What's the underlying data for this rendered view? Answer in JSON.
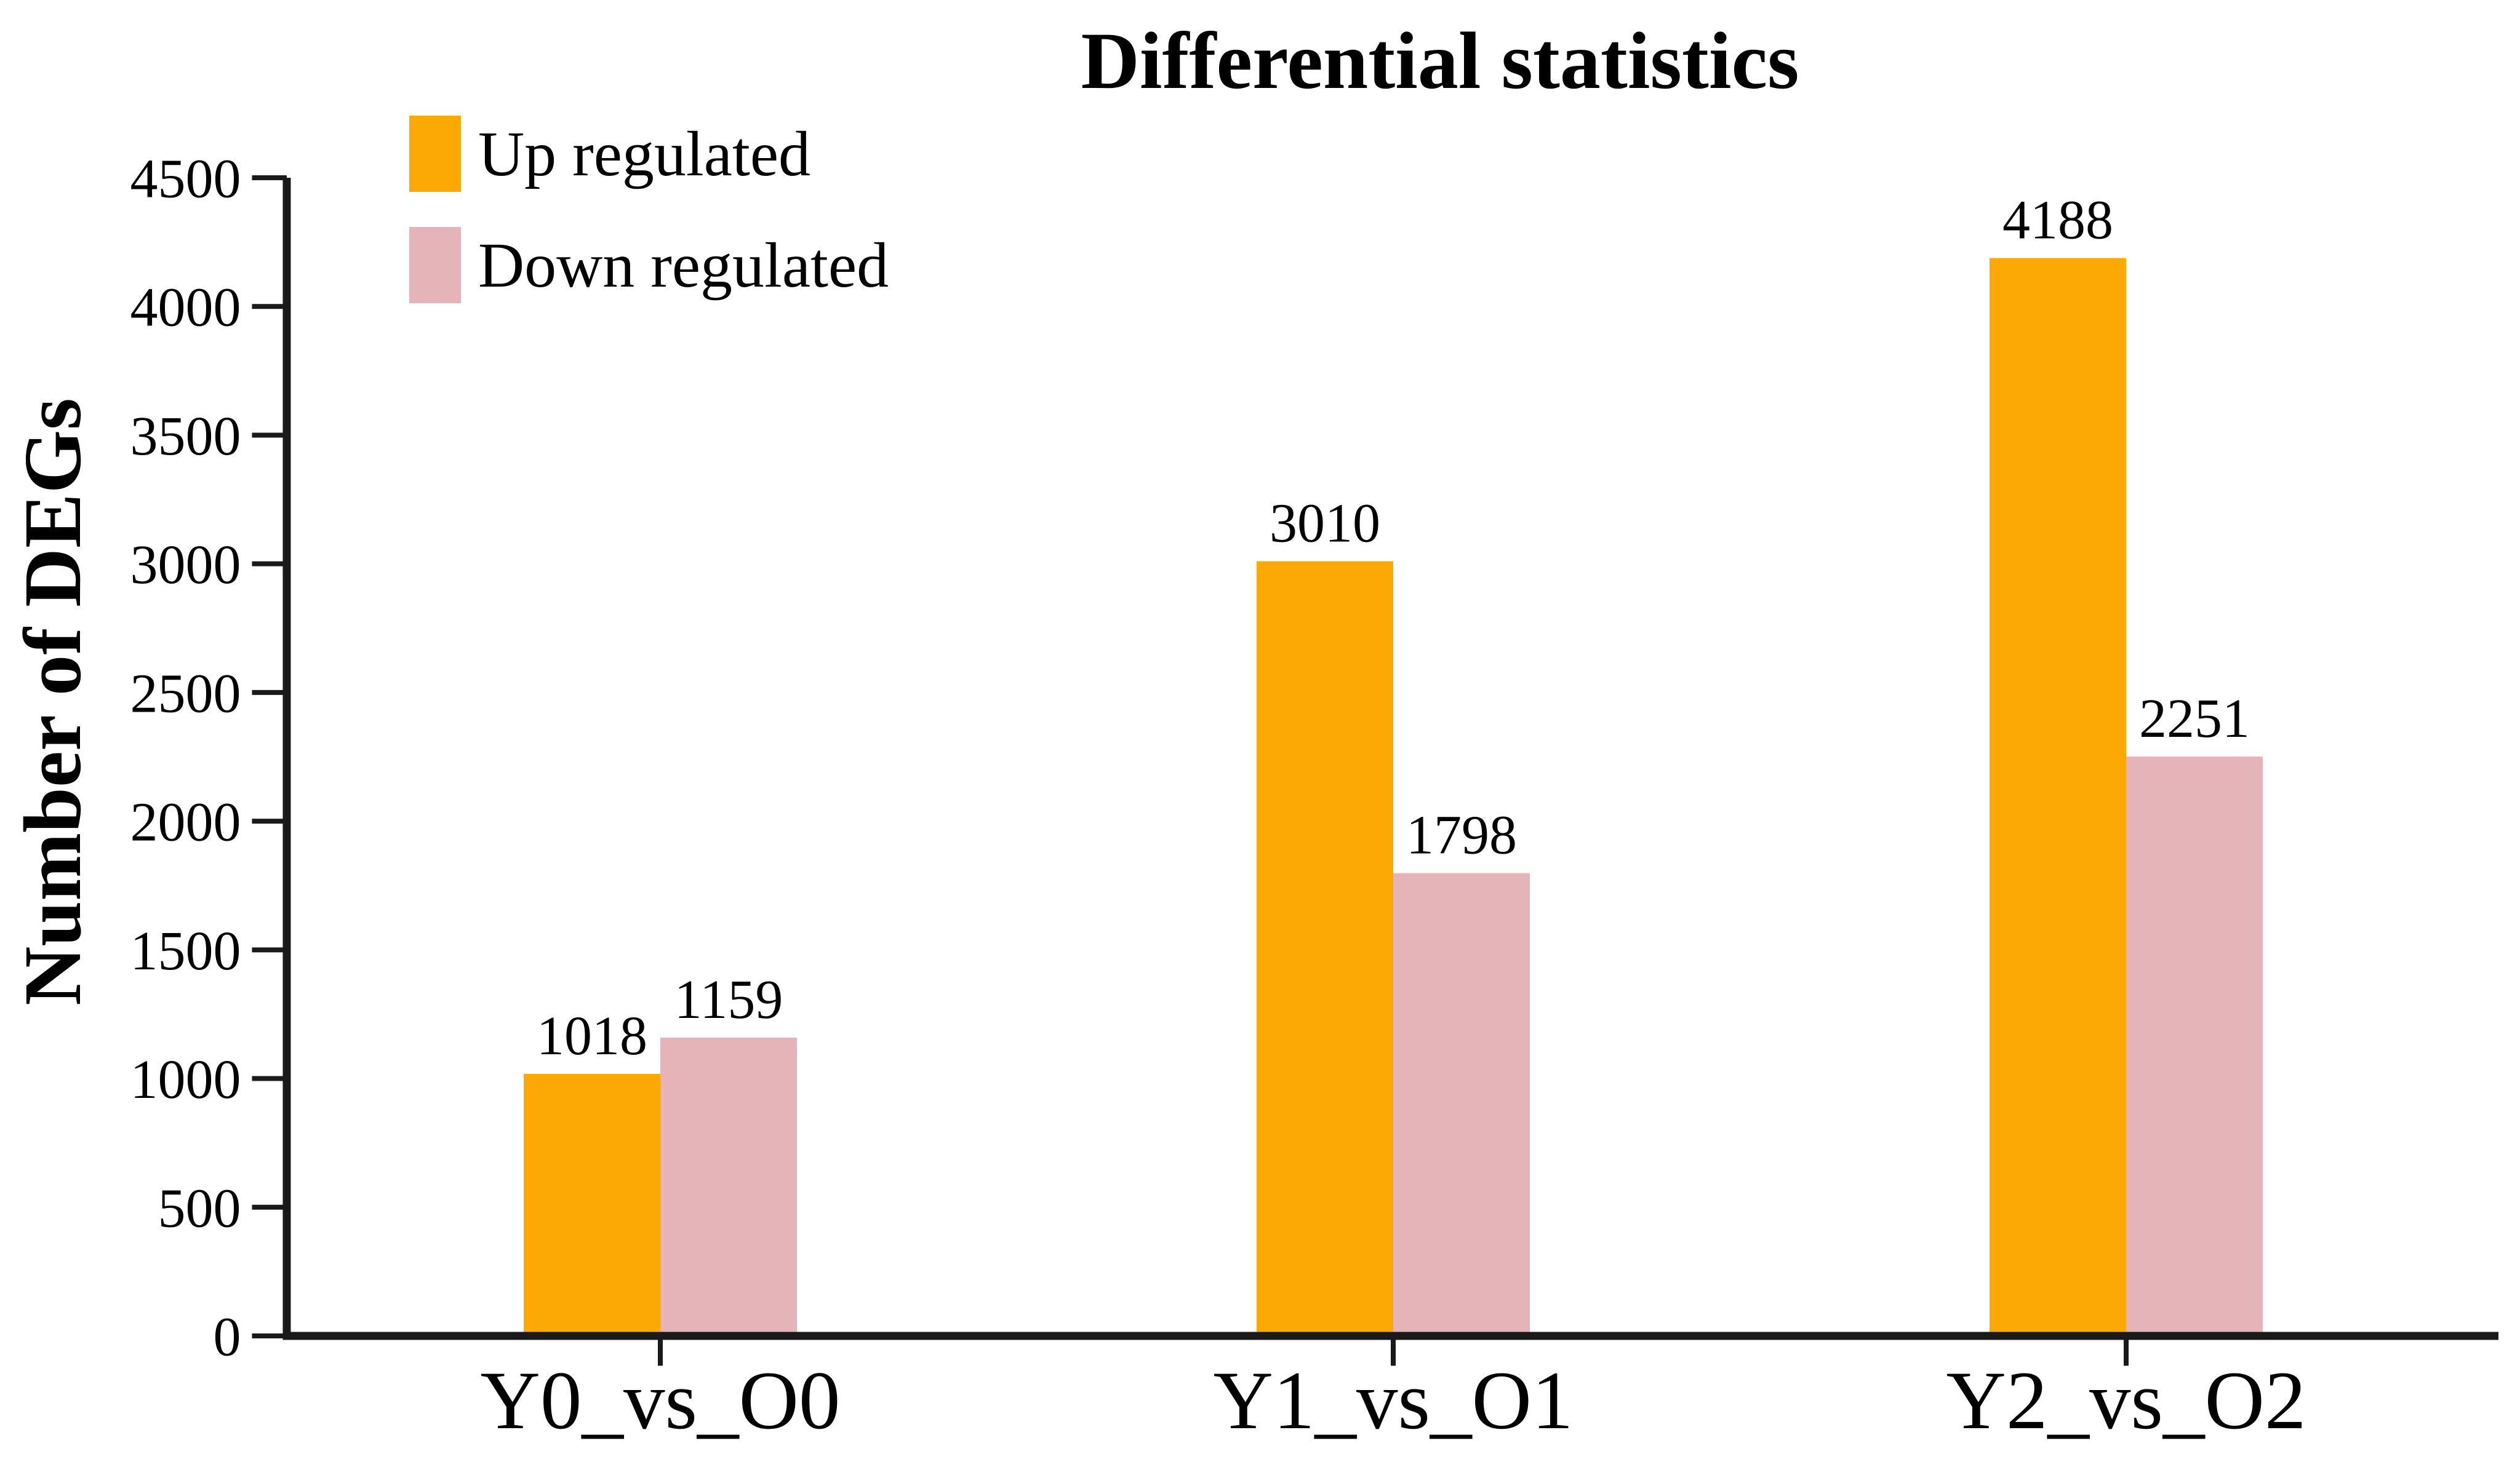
{
  "chart_data": {
    "type": "bar",
    "title": "Differential statistics",
    "ylabel": "Number of DEGs",
    "xlabel": "",
    "categories": [
      "Y0_vs_O0",
      "Y1_vs_O1",
      "Y2_vs_O2"
    ],
    "series": [
      {
        "name": "Up regulated",
        "color": "#FCA905",
        "values": [
          1018,
          3010,
          4188
        ]
      },
      {
        "name": "Down regulated",
        "color": "#E5B4B8",
        "values": [
          1159,
          1798,
          2251
        ]
      }
    ],
    "bar_value_labels": [
      [
        1018,
        1159
      ],
      [
        3010,
        1798
      ],
      [
        4188,
        2251
      ]
    ],
    "ylim": [
      0,
      4500
    ],
    "yticks": [
      0,
      500,
      1000,
      1500,
      2000,
      2500,
      3000,
      3500,
      4000,
      4500
    ],
    "grid": false,
    "legend_position": "top-left",
    "axis_color": "#1a1a1a"
  }
}
